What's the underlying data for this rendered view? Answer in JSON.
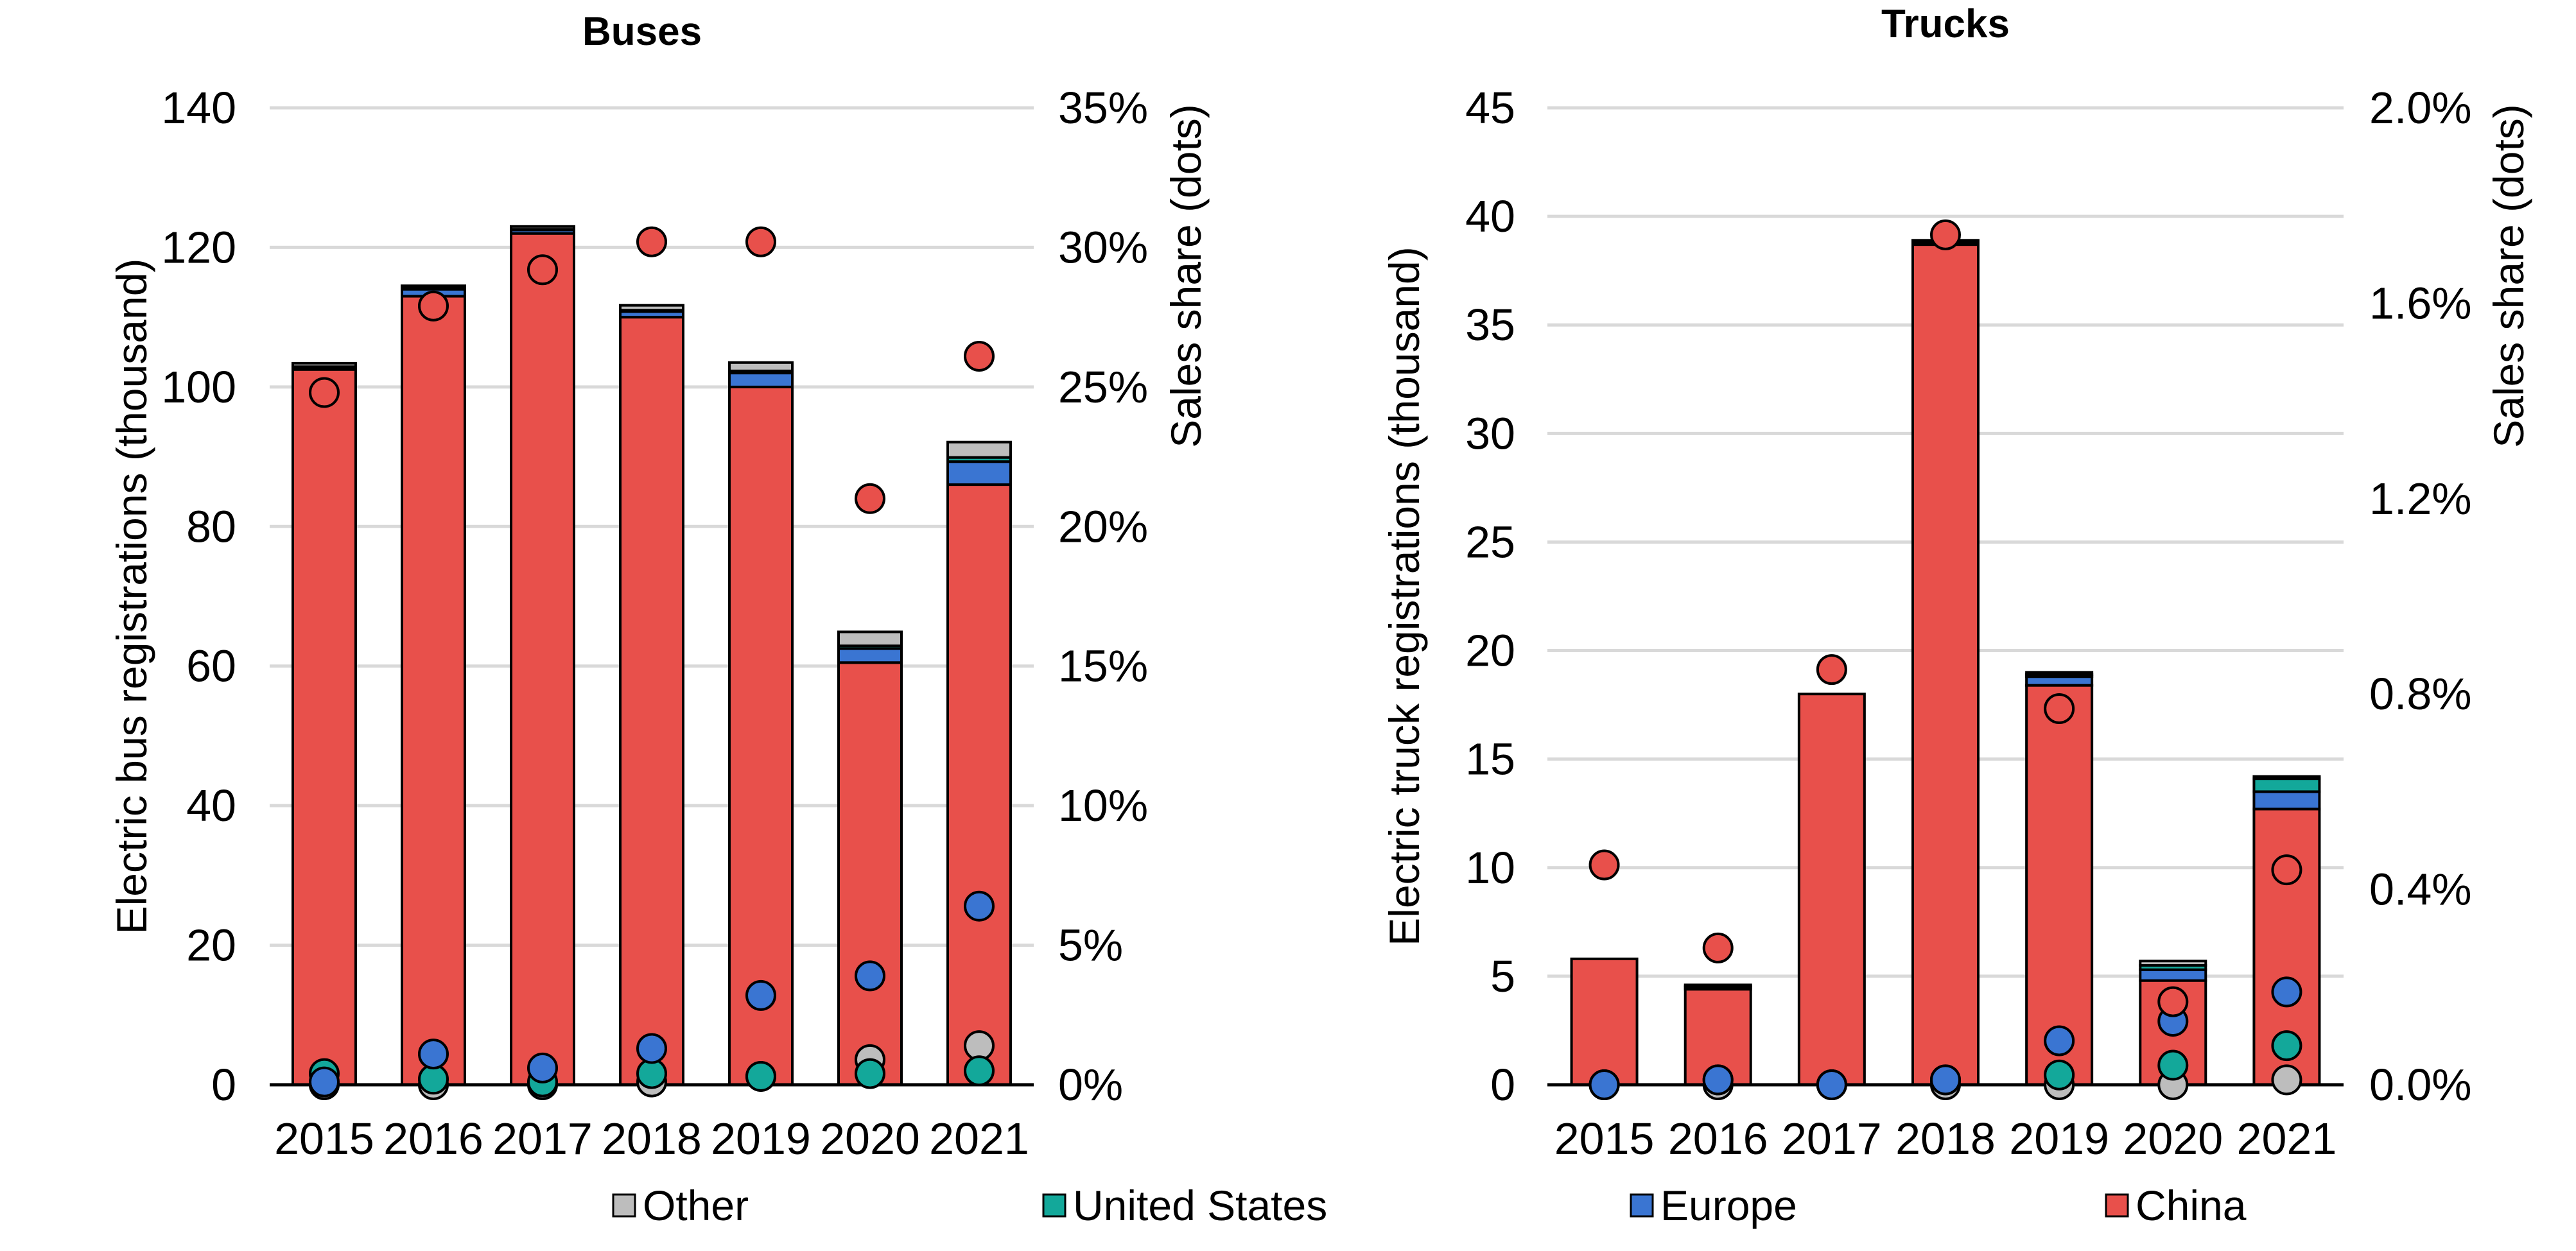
{
  "colors": {
    "China": "#E8504B",
    "Europe": "#3A75D2",
    "United States": "#13A89A",
    "Other": "#BDBDBD",
    "grid": "#D9D9D9"
  },
  "legend": {
    "items": [
      {
        "label": "Other",
        "color": "#BDBDBD"
      },
      {
        "label": "United States",
        "color": "#13A89A"
      },
      {
        "label": "Europe",
        "color": "#3A75D2"
      },
      {
        "label": "China",
        "color": "#E8504B"
      }
    ]
  },
  "chart_data": [
    {
      "type": "bar",
      "stacked": true,
      "title": "Buses",
      "ylabel": "Electric bus registrations (thousand)",
      "y2label": "Sales share (dots)",
      "categories": [
        "2015",
        "2016",
        "2017",
        "2018",
        "2019",
        "2020",
        "2021"
      ],
      "ylim": [
        0,
        140
      ],
      "yticks": [
        0,
        20,
        40,
        60,
        80,
        100,
        120,
        140
      ],
      "y2lim": [
        0,
        35
      ],
      "y2ticks": [
        "0%",
        "5%",
        "10%",
        "15%",
        "20%",
        "25%",
        "30%",
        "35%"
      ],
      "series": [
        {
          "name": "China",
          "values": [
            102.5,
            113.0,
            122.0,
            110.0,
            100.0,
            60.5,
            86.0
          ]
        },
        {
          "name": "Europe",
          "values": [
            0.3,
            1.0,
            0.5,
            0.8,
            2.0,
            2.0,
            3.3
          ]
        },
        {
          "name": "United States",
          "values": [
            0.1,
            0.2,
            0.1,
            0.2,
            0.3,
            0.4,
            0.6
          ]
        },
        {
          "name": "Other",
          "values": [
            0.5,
            0.3,
            0.4,
            0.7,
            1.2,
            2.0,
            2.2
          ]
        }
      ],
      "dots": [
        {
          "name": "China",
          "values": [
            24.8,
            27.9,
            29.2,
            30.2,
            30.2,
            21.0,
            26.1
          ]
        },
        {
          "name": "Europe",
          "values": [
            0.1,
            1.1,
            0.6,
            1.3,
            3.2,
            3.9,
            6.4
          ]
        },
        {
          "name": "United States",
          "values": [
            0.4,
            0.2,
            0.1,
            0.4,
            0.3,
            0.4,
            0.5
          ]
        },
        {
          "name": "Other",
          "values": [
            0.0,
            0.0,
            0.0,
            0.1,
            0.3,
            0.9,
            1.4
          ]
        }
      ],
      "grid": true,
      "legend_position": "bottom"
    },
    {
      "type": "bar",
      "stacked": true,
      "title": "Trucks",
      "ylabel": "Electric truck registrations (thousand)",
      "y2label": "Sales share (dots)",
      "categories": [
        "2015",
        "2016",
        "2017",
        "2018",
        "2019",
        "2020",
        "2021"
      ],
      "ylim": [
        0,
        45
      ],
      "yticks": [
        0,
        5,
        10,
        15,
        20,
        25,
        30,
        35,
        40,
        45
      ],
      "y2lim": [
        0,
        2.0
      ],
      "y2ticks": [
        "0.0%",
        "0.4%",
        "0.8%",
        "1.2%",
        "1.6%",
        "2.0%"
      ],
      "series": [
        {
          "name": "China",
          "values": [
            5.8,
            4.4,
            18.0,
            38.7,
            18.4,
            4.8,
            12.7
          ]
        },
        {
          "name": "Europe",
          "values": [
            0.0,
            0.1,
            0.0,
            0.1,
            0.4,
            0.5,
            0.8
          ]
        },
        {
          "name": "United States",
          "values": [
            0.0,
            0.05,
            0.0,
            0.05,
            0.1,
            0.2,
            0.6
          ]
        },
        {
          "name": "Other",
          "values": [
            0.0,
            0.05,
            0.0,
            0.05,
            0.1,
            0.2,
            0.1
          ]
        }
      ],
      "dots": [
        {
          "name": "China",
          "values": [
            0.45,
            0.28,
            0.85,
            1.74,
            0.77,
            0.17,
            0.44
          ]
        },
        {
          "name": "Europe",
          "values": [
            0.0,
            0.01,
            0.0,
            0.01,
            0.09,
            0.13,
            0.19
          ]
        },
        {
          "name": "United States",
          "values": [
            0.0,
            0.01,
            0.0,
            0.01,
            0.02,
            0.04,
            0.08
          ]
        },
        {
          "name": "Other",
          "values": [
            0.0,
            0.0,
            0.0,
            0.0,
            0.0,
            0.0,
            0.01
          ]
        }
      ],
      "grid": true,
      "legend_position": "bottom"
    }
  ]
}
